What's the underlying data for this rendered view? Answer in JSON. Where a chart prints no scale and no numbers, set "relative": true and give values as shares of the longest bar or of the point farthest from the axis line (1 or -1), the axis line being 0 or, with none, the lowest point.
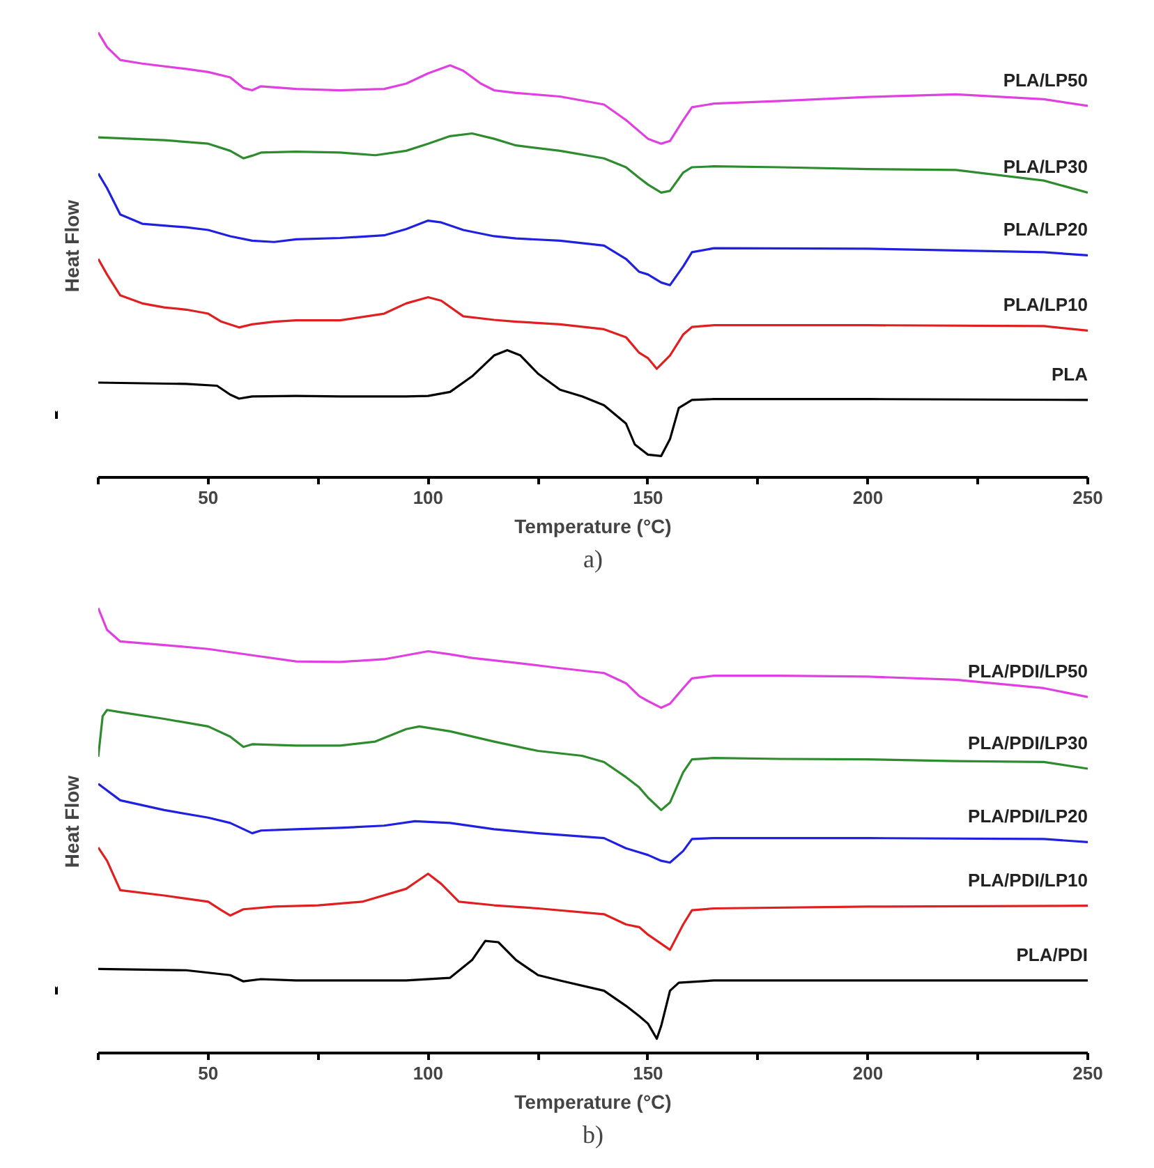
{
  "chart_data": [
    {
      "type": "line",
      "xlabel": "Temperature (°C)",
      "ylabel": "Heat Flow",
      "relative": true,
      "xlim": [
        25,
        250
      ],
      "xticks": [
        {
          "value": 25,
          "label": null
        },
        50,
        {
          "value": 75,
          "label": null
        },
        100,
        {
          "value": 125,
          "label": null
        },
        150,
        {
          "value": 175,
          "label": null
        },
        200,
        {
          "value": 225,
          "label": null
        },
        250
      ],
      "annotations": [
        "a)"
      ],
      "series": [
        {
          "name": "PLA/LP50",
          "color": "#e040e0",
          "x": [
            25,
            27,
            30,
            35,
            45,
            50,
            55,
            58,
            60,
            62,
            70,
            80,
            90,
            95,
            100,
            105,
            108,
            112,
            115,
            120,
            130,
            140,
            145,
            150,
            153,
            155,
            158,
            160,
            165,
            180,
            200,
            220,
            240,
            250
          ],
          "values": [
            1.0,
            0.967,
            0.938,
            0.93,
            0.918,
            0.911,
            0.899,
            0.875,
            0.87,
            0.879,
            0.873,
            0.87,
            0.873,
            0.885,
            0.908,
            0.926,
            0.914,
            0.885,
            0.87,
            0.864,
            0.856,
            0.838,
            0.803,
            0.761,
            0.75,
            0.756,
            0.803,
            0.832,
            0.84,
            0.846,
            0.855,
            0.861,
            0.85,
            0.835
          ]
        },
        {
          "name": "PLA/LP30",
          "color": "#2e8b2e",
          "x": [
            25,
            40,
            50,
            55,
            58,
            60,
            62,
            70,
            80,
            88,
            95,
            100,
            105,
            110,
            115,
            120,
            130,
            140,
            145,
            148,
            150,
            153,
            155,
            158,
            160,
            165,
            180,
            200,
            220,
            240,
            250
          ],
          "values": [
            0.764,
            0.758,
            0.75,
            0.734,
            0.717,
            0.723,
            0.73,
            0.732,
            0.73,
            0.724,
            0.734,
            0.75,
            0.767,
            0.773,
            0.761,
            0.746,
            0.734,
            0.717,
            0.697,
            0.673,
            0.658,
            0.64,
            0.644,
            0.685,
            0.697,
            0.699,
            0.697,
            0.693,
            0.691,
            0.667,
            0.64
          ]
        },
        {
          "name": "PLA/LP20",
          "color": "#2020e0",
          "x": [
            25,
            27,
            30,
            35,
            45,
            50,
            55,
            60,
            65,
            70,
            80,
            90,
            95,
            100,
            103,
            108,
            115,
            120,
            130,
            140,
            145,
            148,
            150,
            153,
            155,
            158,
            160,
            165,
            200,
            240,
            250
          ],
          "values": [
            0.683,
            0.65,
            0.591,
            0.57,
            0.562,
            0.556,
            0.542,
            0.532,
            0.529,
            0.535,
            0.538,
            0.544,
            0.558,
            0.577,
            0.573,
            0.556,
            0.542,
            0.537,
            0.532,
            0.521,
            0.491,
            0.462,
            0.456,
            0.438,
            0.432,
            0.474,
            0.506,
            0.515,
            0.514,
            0.506,
            0.499
          ]
        },
        {
          "name": "PLA/LP10",
          "color": "#e02020",
          "x": [
            25,
            27,
            30,
            35,
            40,
            45,
            50,
            53,
            57,
            60,
            65,
            70,
            80,
            90,
            95,
            100,
            103,
            108,
            115,
            120,
            130,
            140,
            145,
            148,
            150,
            152,
            155,
            158,
            160,
            165,
            200,
            240,
            250
          ],
          "values": [
            0.491,
            0.456,
            0.409,
            0.391,
            0.382,
            0.377,
            0.368,
            0.35,
            0.337,
            0.344,
            0.35,
            0.353,
            0.353,
            0.368,
            0.391,
            0.405,
            0.397,
            0.362,
            0.354,
            0.35,
            0.344,
            0.333,
            0.315,
            0.28,
            0.268,
            0.244,
            0.274,
            0.321,
            0.338,
            0.342,
            0.342,
            0.34,
            0.33
          ]
        },
        {
          "name": "PLA",
          "color": "#000000",
          "x": [
            25,
            45,
            52,
            55,
            57,
            60,
            70,
            80,
            95,
            100,
            105,
            110,
            115,
            118,
            121,
            125,
            130,
            135,
            140,
            145,
            147,
            150,
            153,
            155,
            157,
            160,
            165,
            200,
            250
          ],
          "values": [
            0.213,
            0.21,
            0.206,
            0.186,
            0.177,
            0.182,
            0.183,
            0.182,
            0.182,
            0.183,
            0.192,
            0.227,
            0.274,
            0.286,
            0.274,
            0.233,
            0.197,
            0.182,
            0.162,
            0.121,
            0.074,
            0.051,
            0.048,
            0.086,
            0.156,
            0.174,
            0.176,
            0.176,
            0.174
          ]
        }
      ]
    },
    {
      "type": "line",
      "xlabel": "Temperature (°C)",
      "ylabel": "Heat Flow",
      "relative": true,
      "xlim": [
        25,
        250
      ],
      "xticks": [
        {
          "value": 25,
          "label": null
        },
        50,
        {
          "value": 75,
          "label": null
        },
        100,
        {
          "value": 125,
          "label": null
        },
        150,
        {
          "value": 175,
          "label": null
        },
        200,
        {
          "value": 225,
          "label": null
        },
        250
      ],
      "annotations": [
        "b)"
      ],
      "series": [
        {
          "name": "PLA/PDI/LP50",
          "color": "#e040e0",
          "x": [
            25,
            27,
            30,
            40,
            50,
            60,
            70,
            80,
            90,
            95,
            100,
            105,
            110,
            120,
            130,
            140,
            145,
            148,
            150,
            153,
            155,
            158,
            160,
            165,
            180,
            200,
            220,
            240,
            250
          ],
          "values": [
            1.0,
            0.951,
            0.925,
            0.917,
            0.908,
            0.894,
            0.88,
            0.879,
            0.885,
            0.894,
            0.903,
            0.896,
            0.888,
            0.877,
            0.865,
            0.854,
            0.831,
            0.802,
            0.791,
            0.776,
            0.785,
            0.82,
            0.842,
            0.848,
            0.848,
            0.846,
            0.839,
            0.82,
            0.8
          ]
        },
        {
          "name": "PLA/PDI/LP30",
          "color": "#2e8b2e",
          "x": [
            25,
            26,
            27,
            30,
            40,
            50,
            55,
            58,
            60,
            70,
            80,
            88,
            95,
            98,
            105,
            115,
            125,
            135,
            140,
            145,
            148,
            150,
            153,
            155,
            158,
            160,
            165,
            180,
            200,
            220,
            240,
            250
          ],
          "values": [
            0.666,
            0.757,
            0.771,
            0.766,
            0.751,
            0.734,
            0.711,
            0.688,
            0.694,
            0.691,
            0.691,
            0.7,
            0.728,
            0.734,
            0.723,
            0.7,
            0.679,
            0.668,
            0.654,
            0.62,
            0.597,
            0.574,
            0.546,
            0.563,
            0.631,
            0.66,
            0.663,
            0.661,
            0.66,
            0.656,
            0.654,
            0.639
          ]
        },
        {
          "name": "PLA/PDI/LP20",
          "color": "#2020e0",
          "x": [
            25,
            30,
            40,
            50,
            55,
            60,
            62,
            70,
            80,
            90,
            97,
            105,
            115,
            125,
            140,
            145,
            148,
            150,
            153,
            155,
            158,
            160,
            165,
            200,
            240,
            250
          ],
          "values": [
            0.605,
            0.568,
            0.546,
            0.529,
            0.517,
            0.494,
            0.5,
            0.503,
            0.506,
            0.511,
            0.521,
            0.517,
            0.503,
            0.494,
            0.483,
            0.46,
            0.451,
            0.445,
            0.432,
            0.428,
            0.454,
            0.481,
            0.483,
            0.483,
            0.481,
            0.474
          ]
        },
        {
          "name": "PLA/PDI/LP10",
          "color": "#e02020",
          "x": [
            25,
            27,
            30,
            40,
            50,
            53,
            55,
            58,
            65,
            75,
            85,
            95,
            100,
            103,
            107,
            115,
            125,
            140,
            145,
            148,
            150,
            155,
            158,
            160,
            165,
            200,
            250
          ],
          "values": [
            0.462,
            0.432,
            0.366,
            0.354,
            0.34,
            0.321,
            0.309,
            0.323,
            0.329,
            0.332,
            0.34,
            0.369,
            0.403,
            0.38,
            0.34,
            0.332,
            0.325,
            0.312,
            0.289,
            0.283,
            0.266,
            0.232,
            0.289,
            0.321,
            0.325,
            0.329,
            0.331
          ]
        },
        {
          "name": "PLA/PDI",
          "color": "#000000",
          "x": [
            25,
            45,
            55,
            58,
            62,
            70,
            80,
            95,
            105,
            110,
            113,
            116,
            120,
            125,
            130,
            140,
            145,
            148,
            150,
            152,
            153,
            155,
            157,
            165,
            250
          ],
          "values": [
            0.189,
            0.186,
            0.175,
            0.161,
            0.166,
            0.163,
            0.163,
            0.163,
            0.169,
            0.209,
            0.252,
            0.249,
            0.209,
            0.175,
            0.163,
            0.14,
            0.106,
            0.083,
            0.066,
            0.032,
            0.061,
            0.14,
            0.158,
            0.163,
            0.163
          ]
        }
      ]
    }
  ]
}
